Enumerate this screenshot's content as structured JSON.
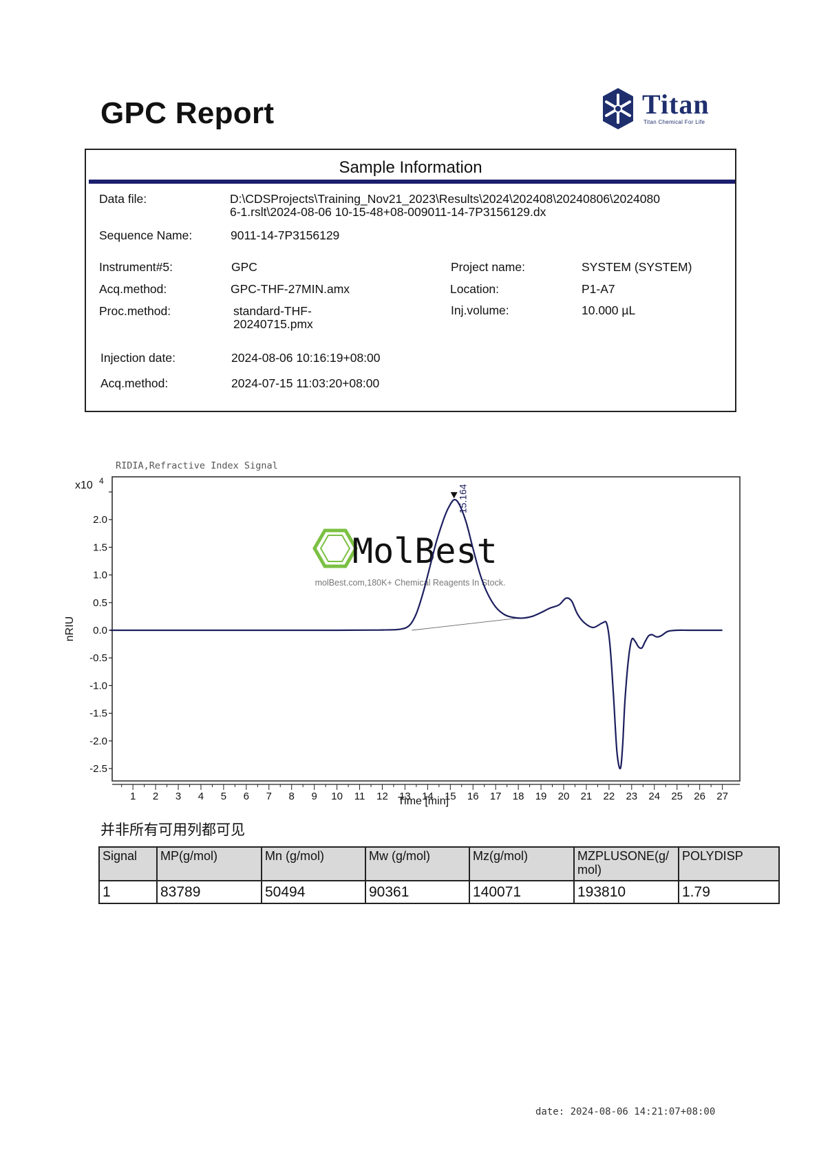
{
  "report": {
    "title": "GPC Report",
    "logo": {
      "name": "Titan",
      "tagline": "Titan Chemical For Life"
    },
    "footer_date": "date:  2024-08-06 14:21:07+08:00"
  },
  "sample_info": {
    "heading": "Sample Information",
    "data_file_label": "Data file:",
    "data_file_line1": "D:\\CDSProjects\\Training_Nov21_2023\\Results\\2024\\202408\\20240806\\2024080",
    "data_file_line2": "6-1.rslt\\2024-08-06 10-15-48+08-009011-14-7P3156129.dx",
    "sequence_label": "Sequence Name:",
    "sequence_value": "9011-14-7P3156129",
    "instrument_label": "Instrument#5:",
    "instrument_value": "GPC",
    "acq_method_label": "Acq.method:",
    "acq_method_value": "GPC-THF-27MIN.amx",
    "proc_method_label": "Proc.method:",
    "proc_method_line1": "standard-THF-",
    "proc_method_line2": "20240715.pmx",
    "project_label": "Project name:",
    "project_value": "SYSTEM (SYSTEM)",
    "location_label": "Location:",
    "location_value": "P1-A7",
    "inj_volume_label": "Inj.volume:",
    "inj_volume_value": "10.000 µL",
    "injection_date_label": "Injection date:",
    "injection_date_value": "2024-08-06 10:16:19+08:00",
    "acq_method2_label": "Acq.method:",
    "acq_method2_value": "2024-07-15 11:03:20+08:00"
  },
  "watermark": {
    "brand": "MolBest",
    "tagline": "molBest.com,180K+ Chemical Reagents In Stock."
  },
  "chart_data": {
    "type": "line",
    "title": "RIDIA,Refractive Index Signal",
    "xlabel": "Time [min]",
    "ylabel": "nRIU",
    "y_multiplier_label": "x10",
    "y_multiplier_exp": "4",
    "xlim": [
      0,
      27.5
    ],
    "ylim": [
      -2.6,
      2.8
    ],
    "xticks": [
      1,
      2,
      3,
      4,
      5,
      6,
      7,
      8,
      9,
      10,
      11,
      12,
      13,
      14,
      15,
      16,
      17,
      18,
      19,
      20,
      21,
      22,
      23,
      24,
      25,
      26,
      27
    ],
    "yticks": [
      2.0,
      1.5,
      1.0,
      0.5,
      0.0,
      -0.5,
      -1.0,
      -1.5,
      -2.0,
      -2.5
    ],
    "ytick_labels": [
      "2.0",
      "1.5",
      "1.0",
      "0.5",
      "0.0",
      "-0.5",
      "-1.0",
      "-1.5",
      "-2.0",
      "-2.5"
    ],
    "grid": false,
    "peak": {
      "x": 15.164,
      "y": 2.36,
      "label": "15.164"
    },
    "series": [
      {
        "color": "#1c1e5e",
        "x": [
          0,
          5,
          10,
          12,
          12.8,
          13.2,
          13.5,
          13.8,
          14.1,
          14.4,
          14.7,
          14.9,
          15.164,
          15.4,
          15.7,
          16.0,
          16.3,
          16.6,
          17.0,
          17.4,
          17.8,
          18.2,
          18.6,
          19.0,
          19.4,
          19.8,
          20.1,
          20.35,
          20.6,
          20.9,
          21.3,
          21.7,
          21.9,
          22.05,
          22.2,
          22.35,
          22.5,
          22.6,
          22.7,
          22.85,
          23.0,
          23.15,
          23.3,
          23.45,
          23.6,
          23.75,
          23.9,
          24.1,
          24.3,
          24.6,
          25.0,
          25.5,
          26.0,
          27.0
        ],
        "y": [
          0,
          0,
          0,
          0.005,
          0.02,
          0.09,
          0.3,
          0.68,
          1.15,
          1.62,
          2.0,
          2.2,
          2.36,
          2.27,
          1.95,
          1.48,
          1.03,
          0.7,
          0.42,
          0.28,
          0.23,
          0.22,
          0.25,
          0.32,
          0.4,
          0.46,
          0.58,
          0.53,
          0.3,
          0.14,
          0.05,
          0.13,
          0.12,
          -0.3,
          -1.2,
          -2.2,
          -2.5,
          -2.1,
          -1.3,
          -0.55,
          -0.17,
          -0.2,
          -0.3,
          -0.32,
          -0.2,
          -0.1,
          -0.08,
          -0.12,
          -0.1,
          -0.02,
          0,
          0,
          0,
          0
        ]
      }
    ],
    "baseline": {
      "x": [
        13.3,
        18.0
      ],
      "y": [
        0.0,
        0.22
      ]
    }
  },
  "results": {
    "note": "并非所有可用列都可见",
    "headers": [
      "Signal",
      "MP(g/mol)",
      "Mn (g/mol)",
      "Mw (g/mol)",
      "Mz(g/mol)",
      "MZPLUSONE(g/\nmol)",
      "POLYDISP"
    ],
    "rows": [
      [
        "1",
        "83789",
        "50494",
        "90361",
        "140071",
        "193810",
        "1.79"
      ]
    ]
  }
}
